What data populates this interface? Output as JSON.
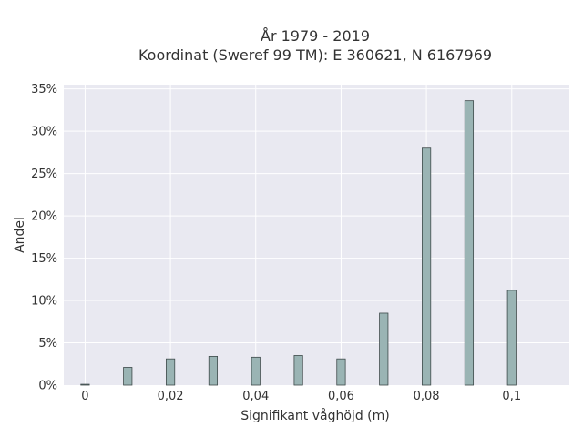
{
  "chart_data": {
    "type": "bar",
    "title": "År 1979 - 2019",
    "subtitle": "Koordinat (Sweref 99 TM): E 360621, N 6167969",
    "xlabel": "Signifikant våghöjd (m)",
    "ylabel": "Andel",
    "x": [
      0,
      0.01,
      0.02,
      0.03,
      0.04,
      0.05,
      0.06,
      0.07,
      0.08,
      0.09,
      0.1
    ],
    "values": [
      0.1,
      2.1,
      3.1,
      3.4,
      3.3,
      3.5,
      3.1,
      8.5,
      28.0,
      33.6,
      11.2
    ],
    "xlim": [
      -0.005,
      0.1135
    ],
    "ylim": [
      0,
      35.5
    ],
    "x_ticks": [
      0,
      0.02,
      0.04,
      0.06,
      0.08,
      0.1
    ],
    "x_tick_labels": [
      "0",
      "0,02",
      "0,04",
      "0,06",
      "0,08",
      "0,1"
    ],
    "y_ticks": [
      0,
      5,
      10,
      15,
      20,
      25,
      30,
      35
    ],
    "y_tick_labels": [
      "0%",
      "5%",
      "10%",
      "15%",
      "20%",
      "25%",
      "30%",
      "35%"
    ],
    "bar_width": 0.002,
    "grid": true,
    "colors": {
      "plot_bg": "#E9E9F1",
      "bar_fill": "#9AB4B4",
      "bar_stroke": "#3E4A4A",
      "grid": "#ffffff",
      "text": "#333333"
    }
  }
}
